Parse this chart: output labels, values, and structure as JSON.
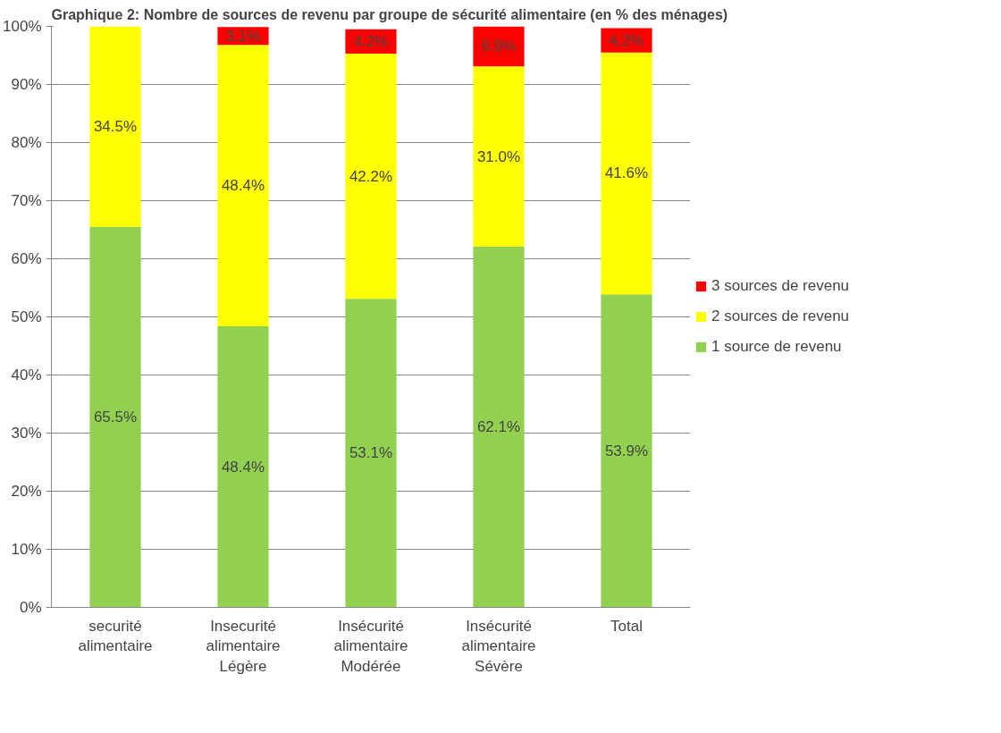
{
  "chart_data": {
    "type": "bar",
    "stacked": true,
    "title": "Graphique 2: Nombre de sources de revenu par groupe de sécurité alimentaire (en % des ménages)",
    "categories": [
      "securité\nalimentaire",
      "Insecurité\nalimentaire\nLégère",
      "Insécurité\nalimentaire\nModérée",
      "Insécurité\nalimentaire\nSévère",
      "Total"
    ],
    "series": [
      {
        "name": "1 source de revenu",
        "color": "#92d050",
        "values": [
          65.5,
          48.4,
          53.1,
          62.1,
          53.9
        ],
        "value_labels": [
          "65.5%",
          "48.4%",
          "53.1%",
          "62.1%",
          "53.9%"
        ]
      },
      {
        "name": "2 sources de revenu",
        "color": "#ffff00",
        "values": [
          34.5,
          48.4,
          42.2,
          31.0,
          41.6
        ],
        "value_labels": [
          "34.5%",
          "48.4%",
          "42.2%",
          "31.0%",
          "41.6%"
        ]
      },
      {
        "name": "3 sources de revenu",
        "color": "#ff0000",
        "values": [
          null,
          3.1,
          4.2,
          6.9,
          4.2
        ],
        "value_labels": [
          null,
          "3.1%",
          "4.2%",
          "6.9%",
          "4.2%"
        ]
      }
    ],
    "ylim": [
      0,
      100
    ],
    "yticks": [
      {
        "value": 0,
        "label": "0%"
      },
      {
        "value": 10,
        "label": "10%"
      },
      {
        "value": 20,
        "label": "20%"
      },
      {
        "value": 30,
        "label": "30%"
      },
      {
        "value": 40,
        "label": "40%"
      },
      {
        "value": 50,
        "label": "50%"
      },
      {
        "value": 60,
        "label": "60%"
      },
      {
        "value": 70,
        "label": "70%"
      },
      {
        "value": 80,
        "label": "80%"
      },
      {
        "value": 90,
        "label": "90%"
      },
      {
        "value": 100,
        "label": "100%"
      }
    ],
    "grid": "y",
    "legend": "right"
  }
}
